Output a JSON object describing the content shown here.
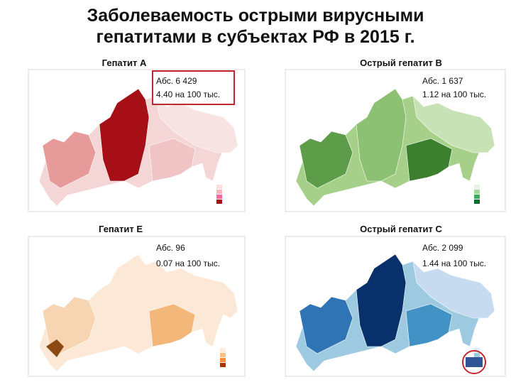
{
  "title": [
    "Заболеваемость острыми вирусными",
    "гепатитами в субъектах РФ в 2015 г."
  ],
  "panels": [
    {
      "heading": "Гепатит А",
      "lines": [
        "Абс. 6  429",
        "4.40 на 100 тыс."
      ]
    },
    {
      "heading": "Острый гепатит В",
      "lines": [
        "Абс. 1 637",
        "1.12 на 100 тыс."
      ]
    },
    {
      "heading": "Гепатит Е",
      "lines": [
        "Абс. 96",
        "0.07 на 100 тыс."
      ]
    },
    {
      "heading": "Острый гепатит С",
      "lines": [
        "Абс. 2 099",
        "1.44 на 100 тыс."
      ]
    }
  ]
}
